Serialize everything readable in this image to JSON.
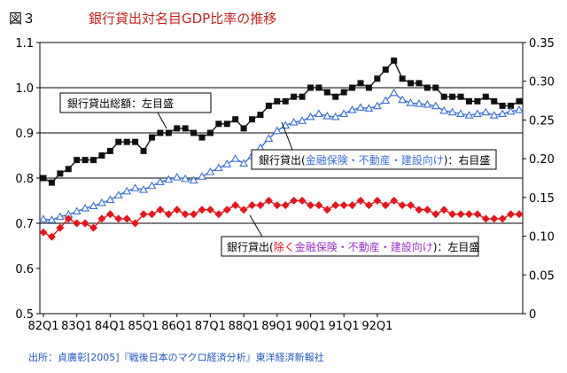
{
  "figure_label": "図３",
  "source": "出所：貞廣彰[2005]『戦後日本のマクロ経済分析』東洋経済新報社",
  "colors": {
    "total": "#111111",
    "excl": "#e8141c",
    "incl": "#3a6fd8",
    "grid": "#000000"
  },
  "chart_data": {
    "type": "line",
    "title": "銀行貸出対名目GDP比率の推移",
    "x_tick_labels": [
      "82Q1",
      "83Q1",
      "84Q1",
      "85Q1",
      "86Q1",
      "87Q1",
      "88Q1",
      "89Q1",
      "90Q1",
      "91Q1",
      "92Q1"
    ],
    "x_range": [
      "1982Q1",
      "1992Q4"
    ],
    "left_axis": {
      "range": [
        0.5,
        1.1
      ],
      "ticks": [
        "0.5",
        "0.6",
        "0.7",
        "0.8",
        "0.9",
        "1.0",
        "1.1"
      ]
    },
    "right_axis": {
      "range": [
        0,
        0.35
      ],
      "ticks": [
        "0",
        "0.05",
        "0.10",
        "0.15",
        "0.20",
        "0.25",
        "0.30",
        "0.35"
      ]
    },
    "gridlines": [
      0.7,
      0.8,
      0.9,
      1.0
    ],
    "series": [
      {
        "key": "total",
        "axis": "left",
        "marker": "square",
        "label_parts": [
          {
            "text": "銀行貸出総額：左目盛",
            "color": "#000000"
          }
        ],
        "values": [
          0.8,
          0.79,
          0.81,
          0.82,
          0.84,
          0.84,
          0.84,
          0.85,
          0.86,
          0.88,
          0.88,
          0.88,
          0.86,
          0.89,
          0.9,
          0.9,
          0.91,
          0.91,
          0.9,
          0.89,
          0.9,
          0.92,
          0.92,
          0.93,
          0.91,
          0.93,
          0.94,
          0.96,
          0.97,
          0.97,
          0.98,
          0.98,
          1.0,
          1.0,
          0.99,
          0.98,
          0.99,
          1.0,
          1.01,
          1.0,
          1.02,
          1.04,
          1.06,
          1.02,
          1.01,
          1.01,
          1.0,
          1.0,
          0.98,
          0.98,
          0.98,
          0.97,
          0.97,
          0.98,
          0.97,
          0.96,
          0.96,
          0.97
        ]
      },
      {
        "key": "incl",
        "axis": "right",
        "marker": "triangle",
        "label_parts": [
          {
            "text": "銀行貸出(",
            "color": "#000000"
          },
          {
            "text": "金融保険・不動産・建設向け",
            "color": "#3a6fd8"
          },
          {
            "text": ")：右目盛",
            "color": "#000000"
          }
        ],
        "values": [
          0.122,
          0.121,
          0.125,
          0.128,
          0.132,
          0.136,
          0.139,
          0.143,
          0.147,
          0.153,
          0.158,
          0.162,
          0.16,
          0.165,
          0.17,
          0.173,
          0.176,
          0.174,
          0.172,
          0.177,
          0.183,
          0.188,
          0.193,
          0.2,
          0.194,
          0.204,
          0.214,
          0.226,
          0.236,
          0.243,
          0.247,
          0.249,
          0.254,
          0.258,
          0.255,
          0.254,
          0.258,
          0.263,
          0.266,
          0.265,
          0.268,
          0.275,
          0.285,
          0.276,
          0.272,
          0.271,
          0.27,
          0.268,
          0.262,
          0.26,
          0.258,
          0.256,
          0.258,
          0.26,
          0.256,
          0.258,
          0.261,
          0.263
        ]
      },
      {
        "key": "excl",
        "axis": "left",
        "marker": "diamond",
        "label_parts": [
          {
            "text": "銀行貸出(",
            "color": "#000000"
          },
          {
            "text": "除く",
            "color": "#e8141c"
          },
          {
            "text": "金融保険・不動産・建設向け",
            "color": "#9a32c8"
          },
          {
            "text": ")：左目盛",
            "color": "#000000"
          }
        ],
        "values": [
          0.68,
          0.67,
          0.69,
          0.71,
          0.7,
          0.7,
          0.69,
          0.71,
          0.72,
          0.71,
          0.71,
          0.7,
          0.72,
          0.72,
          0.73,
          0.72,
          0.73,
          0.72,
          0.72,
          0.73,
          0.73,
          0.72,
          0.73,
          0.74,
          0.73,
          0.74,
          0.74,
          0.75,
          0.74,
          0.74,
          0.75,
          0.75,
          0.74,
          0.74,
          0.73,
          0.74,
          0.74,
          0.74,
          0.75,
          0.74,
          0.75,
          0.74,
          0.75,
          0.74,
          0.74,
          0.73,
          0.73,
          0.72,
          0.73,
          0.72,
          0.72,
          0.72,
          0.72,
          0.71,
          0.71,
          0.71,
          0.72,
          0.72
        ]
      }
    ]
  }
}
